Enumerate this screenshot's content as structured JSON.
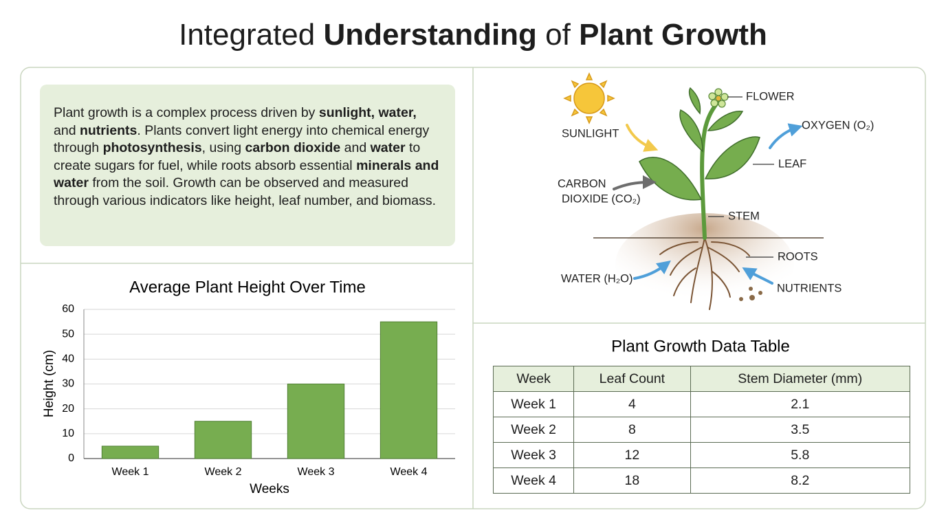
{
  "header": {
    "title_parts": [
      {
        "text": "Integrated",
        "bold": false
      },
      {
        "text": "Understanding",
        "bold": true
      },
      {
        "text": "of",
        "bold": false
      },
      {
        "text": "Plant Growth",
        "bold": true
      }
    ]
  },
  "intro": {
    "parts": [
      {
        "text": "Plant growth is a complex process driven by ",
        "bold": false
      },
      {
        "text": "sunlight, water,",
        "bold": true
      },
      {
        "text": " and ",
        "bold": false
      },
      {
        "text": "nutrients",
        "bold": true
      },
      {
        "text": ". Plants convert light energy into chemical energy through ",
        "bold": false
      },
      {
        "text": "photosynthesis",
        "bold": true
      },
      {
        "text": ", using ",
        "bold": false
      },
      {
        "text": "carbon dioxide",
        "bold": true
      },
      {
        "text": " and ",
        "bold": false
      },
      {
        "text": "water",
        "bold": true
      },
      {
        "text": " to create sugars for fuel, while roots absorb essential ",
        "bold": false
      },
      {
        "text": "minerals and water",
        "bold": true
      },
      {
        "text": " from the soil. Growth can be observed and measured through various indicators like height, leaf number, and biomass.",
        "bold": false
      }
    ]
  },
  "diagram": {
    "labels": [
      {
        "lines": [
          "FLOWER"
        ]
      },
      {
        "lines": [
          "SUNLIGHT"
        ]
      },
      {
        "lines": [
          "OXYGEN (O₂)"
        ]
      },
      {
        "lines": [
          "LEAF"
        ]
      },
      {
        "lines": [
          "CARBON",
          "DIOXIDE (CO₂)"
        ]
      },
      {
        "lines": [
          "STEM"
        ]
      },
      {
        "lines": [
          "ROOTS"
        ]
      },
      {
        "lines": [
          "WATER (H₂O)"
        ]
      },
      {
        "lines": [
          "NUTRIENTS"
        ]
      }
    ]
  },
  "chart_data": {
    "type": "bar",
    "title": "Average Plant Height Over Time",
    "x_label": "Weeks",
    "y_label": "Height (cm)",
    "categories": [
      "Week 1",
      "Week 2",
      "Week 3",
      "Week 4"
    ],
    "values": [
      5,
      15,
      30,
      55
    ],
    "color": "#77ad50",
    "ylim": [
      0,
      60
    ],
    "yticks": [
      0,
      10,
      20,
      30,
      40,
      50,
      60
    ],
    "grid": true
  },
  "table": {
    "title": "Plant Growth Data Table",
    "headers": [
      "Week",
      "Leaf Count",
      "Stem Diameter (mm)"
    ],
    "rows": [
      [
        "Week 1",
        4,
        2.1
      ],
      [
        "Week 2",
        8,
        3.5
      ],
      [
        "Week 3",
        12,
        5.8
      ],
      [
        "Week 4",
        18,
        8.2
      ]
    ]
  }
}
